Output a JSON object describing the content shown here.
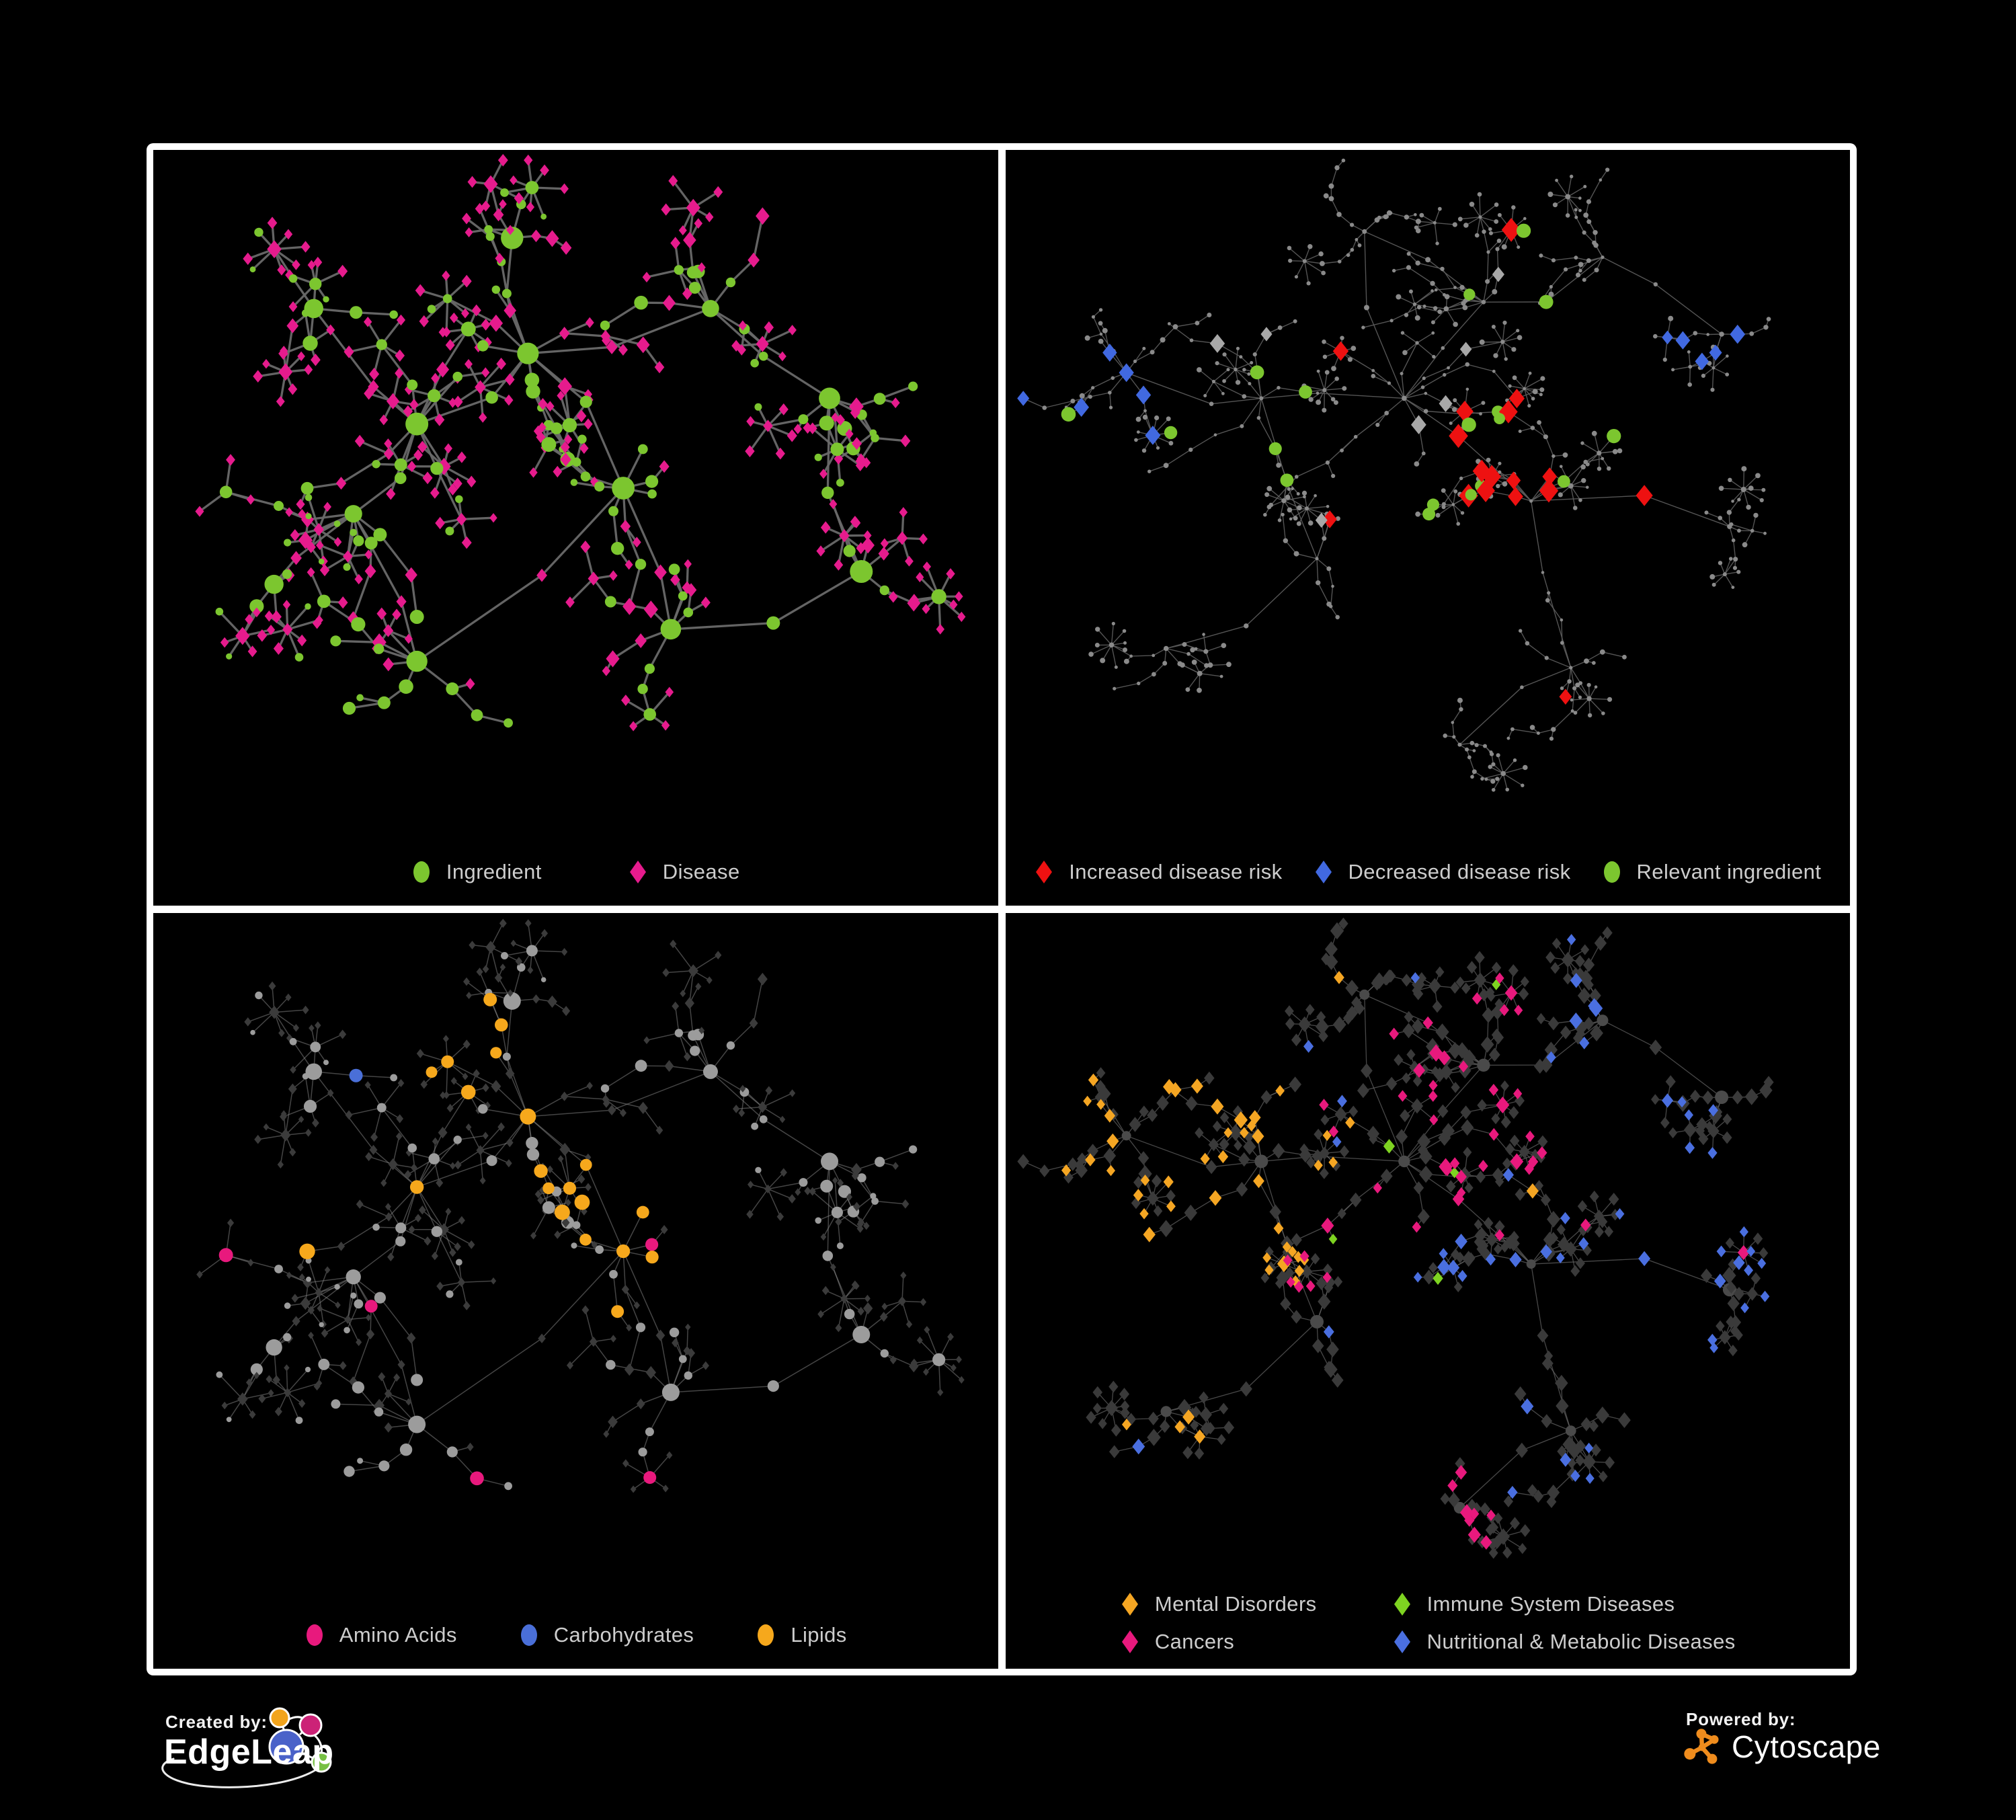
{
  "page": {
    "background": "#000000",
    "frame_color": "#ffffff"
  },
  "panels": [
    {
      "name": "ingredient-disease-network",
      "legend": [
        {
          "label": "Ingredient",
          "shape": "circle",
          "color": "#7cc62f"
        },
        {
          "label": "Disease",
          "shape": "diamond",
          "color": "#e61b8d"
        }
      ]
    },
    {
      "name": "disease-risk-network",
      "legend": [
        {
          "label": "Increased disease risk",
          "shape": "diamond",
          "color": "#ee1111"
        },
        {
          "label": "Decreased disease risk",
          "shape": "diamond",
          "color": "#4169e1"
        },
        {
          "label": "Relevant ingredient",
          "shape": "circle",
          "color": "#7cc62f"
        }
      ]
    },
    {
      "name": "nutrient-class-network",
      "legend": [
        {
          "label": "Amino Acids",
          "shape": "circle",
          "color": "#e8197d"
        },
        {
          "label": "Carbohydrates",
          "shape": "circle",
          "color": "#4a6fd8"
        },
        {
          "label": "Lipids",
          "shape": "circle",
          "color": "#f6a81c"
        }
      ]
    },
    {
      "name": "disease-class-network",
      "legend": [
        {
          "label": "Mental Disorders",
          "shape": "diamond",
          "color": "#f5a623"
        },
        {
          "label": "Cancers",
          "shape": "diamond",
          "color": "#e8197d"
        },
        {
          "label": "Immune System Diseases",
          "shape": "diamond",
          "color": "#7ed321"
        },
        {
          "label": "Nutritional & Metabolic Diseases",
          "shape": "diamond",
          "color": "#4a6fe0"
        }
      ]
    }
  ],
  "footer": {
    "created_by_label": "Created by:",
    "created_by_name": "EdgeLeap",
    "powered_by_label": "Powered by:",
    "powered_by_name": "Cytoscape"
  },
  "chart_data": {
    "type": "network",
    "description": "Four styled views of the same ingredient-disease association network on black panels framed in white. Panel 1: ingredients (green circles) vs diseases (pink diamonds). Panel 2: gray context network with highlighted increased (red) / decreased (blue) disease-risk diamonds, gray neutral diamonds and relevant-ingredient green circles. Panel 3: gray network with ingredient circles colored by nutrient class (amino acids pink, carbohydrates blue, lipids amber). Panel 4: dark diamond network with disease nodes colored by class (mental disorders amber cluster left, cancers pink center, immune green sparse, nutritional & metabolic blue right).",
    "legend_text_color": "#cdcdcd",
    "layouts": {
      "A": {
        "seed": 14,
        "leafDiamondP": 0.8,
        "stepDiamondP": 0.45,
        "params": {
          "steps": [
            1,
            3
          ],
          "len": [
            44,
            96
          ],
          "fan": [
            3,
            8
          ],
          "fanR": [
            26,
            50
          ],
          "twigP": 0.25,
          "fanP": 0.55
        },
        "clusters": [
          {
            "x": 0.17,
            "y": 0.22,
            "s": 0.75,
            "b": 5
          },
          {
            "x": 0.3,
            "y": 0.4,
            "s": 1.0,
            "b": 9
          },
          {
            "x": 0.22,
            "y": 0.54,
            "s": 0.85,
            "b": 7
          },
          {
            "x": 0.44,
            "y": 0.29,
            "s": 0.85,
            "b": 8
          },
          {
            "x": 0.56,
            "y": 0.5,
            "s": 0.75,
            "b": 7
          },
          {
            "x": 0.42,
            "y": 0.11,
            "s": 0.55,
            "b": 4
          },
          {
            "x": 0.67,
            "y": 0.22,
            "s": 0.7,
            "b": 6
          },
          {
            "x": 0.82,
            "y": 0.36,
            "s": 0.6,
            "b": 5
          },
          {
            "x": 0.62,
            "y": 0.72,
            "s": 0.7,
            "b": 6
          },
          {
            "x": 0.3,
            "y": 0.77,
            "s": 0.7,
            "b": 6
          },
          {
            "x": 0.86,
            "y": 0.63,
            "s": 0.5,
            "b": 4
          },
          {
            "x": 0.12,
            "y": 0.65,
            "s": 0.55,
            "b": 4
          }
        ],
        "links": [
          [
            1,
            2
          ],
          [
            1,
            3
          ],
          [
            3,
            5
          ],
          [
            3,
            4
          ],
          [
            4,
            8
          ],
          [
            6,
            7
          ],
          [
            3,
            6
          ],
          [
            9,
            2
          ],
          [
            8,
            10
          ],
          [
            11,
            2
          ],
          [
            4,
            9
          ],
          [
            7,
            10
          ],
          [
            0,
            1
          ]
        ]
      },
      "B": {
        "seed": 87,
        "leafDiamondP": 0.75,
        "stepDiamondP": 0.5,
        "params": {
          "steps": [
            2,
            5
          ],
          "len": [
            30,
            62
          ],
          "fan": [
            4,
            9
          ],
          "fanR": [
            18,
            34
          ],
          "twigP": 0.35,
          "fanP": 0.5
        },
        "clusters": [
          {
            "x": 0.12,
            "y": 0.32,
            "s": 0.7,
            "b": 6
          },
          {
            "x": 0.29,
            "y": 0.36,
            "s": 0.85,
            "b": 7
          },
          {
            "x": 0.47,
            "y": 0.36,
            "s": 0.95,
            "b": 8
          },
          {
            "x": 0.57,
            "y": 0.21,
            "s": 0.75,
            "b": 7
          },
          {
            "x": 0.72,
            "y": 0.14,
            "s": 0.6,
            "b": 5
          },
          {
            "x": 0.87,
            "y": 0.26,
            "s": 0.5,
            "b": 4
          },
          {
            "x": 0.63,
            "y": 0.52,
            "s": 0.75,
            "b": 6
          },
          {
            "x": 0.36,
            "y": 0.61,
            "s": 0.65,
            "b": 5
          },
          {
            "x": 0.17,
            "y": 0.75,
            "s": 0.6,
            "b": 5
          },
          {
            "x": 0.68,
            "y": 0.78,
            "s": 0.65,
            "b": 6
          },
          {
            "x": 0.88,
            "y": 0.56,
            "s": 0.5,
            "b": 4
          },
          {
            "x": 0.42,
            "y": 0.1,
            "s": 0.5,
            "b": 4
          },
          {
            "x": 0.54,
            "y": 0.9,
            "s": 0.4,
            "b": 3
          }
        ],
        "links": [
          [
            0,
            1
          ],
          [
            1,
            2
          ],
          [
            2,
            3
          ],
          [
            3,
            4
          ],
          [
            4,
            5
          ],
          [
            2,
            6
          ],
          [
            6,
            9
          ],
          [
            1,
            7
          ],
          [
            7,
            8
          ],
          [
            6,
            10
          ],
          [
            2,
            11
          ],
          [
            9,
            12
          ],
          [
            3,
            11
          ]
        ]
      }
    },
    "panel_styles": [
      {
        "seed": 11,
        "edge": {
          "color": "#696969",
          "width": 3.3,
          "opacity": 0.95
        },
        "base": "asis",
        "circleColor": "#7cc62f",
        "diamondColor": "#e61b8d",
        "circleScale": 1.4,
        "diamondScale": 1.3,
        "maxCircle": 17,
        "rules": []
      },
      {
        "seed": 23,
        "edge": {
          "color": "#5d5d5d",
          "width": 1.4,
          "opacity": 0.9
        },
        "base": "dot",
        "dotColor": "#8a8a8a",
        "dotR": 3,
        "rules": [
          {
            "type": "diamond",
            "shape": "diamond",
            "color": "#ee1111",
            "size": 15,
            "clusters": [
              2,
              3,
              6
            ],
            "kinds": [
              "step",
              "hub"
            ],
            "p": 0.3
          },
          {
            "type": "diamond",
            "shape": "diamond",
            "color": "#ee1111",
            "size": 13,
            "clusters": [
              7,
              9
            ],
            "kinds": [
              "step"
            ],
            "p": 0.1
          },
          {
            "shape": "diamond",
            "color": "#4169e1",
            "size": 13,
            "clusters": [
              0
            ],
            "kinds": [
              "step",
              "hub"
            ],
            "p": 0.32
          },
          {
            "shape": "diamond",
            "color": "#4169e1",
            "size": 12,
            "clusters": [
              5
            ],
            "kinds": [
              "step"
            ],
            "p": 0.3
          },
          {
            "shape": "diamond",
            "color": "#a8a8a8",
            "size": 12,
            "clusters": [
              1,
              2,
              3,
              7
            ],
            "kinds": [
              "step"
            ],
            "p": 0.06
          },
          {
            "type": "circle",
            "shape": "circle",
            "color": "#7cc62f",
            "size": 9,
            "clusters": [
              0,
              1,
              2,
              3,
              6
            ],
            "kinds": [
              "step",
              "leaf"
            ],
            "p": 0.17
          }
        ]
      },
      {
        "seed": 37,
        "edge": {
          "color": "#8a8a8a",
          "width": 1.5,
          "opacity": 0.5
        },
        "base": "asis",
        "circleColor": "#9c9c9c",
        "diamondColor": "#3b3b3b",
        "circleScale": 1.2,
        "diamondScale": 0.95,
        "maxCircle": 13,
        "rules": [
          {
            "type": "circle",
            "color": "#f6a81c",
            "size": 10,
            "clusters": [
              3
            ],
            "p": 0.6
          },
          {
            "type": "circle",
            "color": "#f6a81c",
            "size": 10,
            "clusters": [
              4,
              1
            ],
            "p": 0.16
          },
          {
            "type": "circle",
            "color": "#4a6fd8",
            "size": 10,
            "clusters": [
              3,
              4
            ],
            "p": 0.14
          },
          {
            "type": "circle",
            "color": "#4a6fd8",
            "size": 9,
            "clusters": [
              0,
              10
            ],
            "p": 0.05
          },
          {
            "type": "circle",
            "color": "#e8197d",
            "size": 10,
            "clusters": [
              0,
              1,
              2,
              4,
              8,
              9,
              11
            ],
            "p": 0.09
          }
        ]
      },
      {
        "seed": 53,
        "edge": {
          "color": "#666666",
          "width": 1.3,
          "opacity": 0.7
        },
        "base": "diamonds",
        "diamondColor": "#3a3a3a",
        "hubColor": "#4a4a4a",
        "diamondScale": 1.1,
        "rules": [
          {
            "type": "diamond",
            "color": "#f5a623",
            "clusters": [
              0,
              1
            ],
            "p": 0.6
          },
          {
            "type": "diamond",
            "color": "#f5a623",
            "clusters": [
              8
            ],
            "p": 0.2
          },
          {
            "type": "diamond",
            "color": "#e8197d",
            "clusters": [
              2,
              3,
              7,
              12
            ],
            "p": 0.32
          },
          {
            "type": "diamond",
            "color": "#4a6fe0",
            "clusters": [
              4,
              5,
              6,
              9,
              10
            ],
            "p": 0.32
          },
          {
            "type": "diamond",
            "color": "#4a6fe0",
            "clusters": [
              1,
              2,
              3,
              7,
              8,
              11,
              12
            ],
            "p": 0.04
          },
          {
            "type": "diamond",
            "color": "#f5a623",
            "clusters": [
              2,
              6,
              7,
              9,
              11
            ],
            "p": 0.03
          },
          {
            "type": "diamond",
            "color": "#e8197d",
            "clusters": [
              0,
              1,
              4,
              6,
              8,
              9,
              10
            ],
            "p": 0.025
          },
          {
            "type": "diamond",
            "color": "#7ed321",
            "clusters": [
              2,
              3,
              6,
              1
            ],
            "p": 0.03
          }
        ]
      }
    ]
  }
}
